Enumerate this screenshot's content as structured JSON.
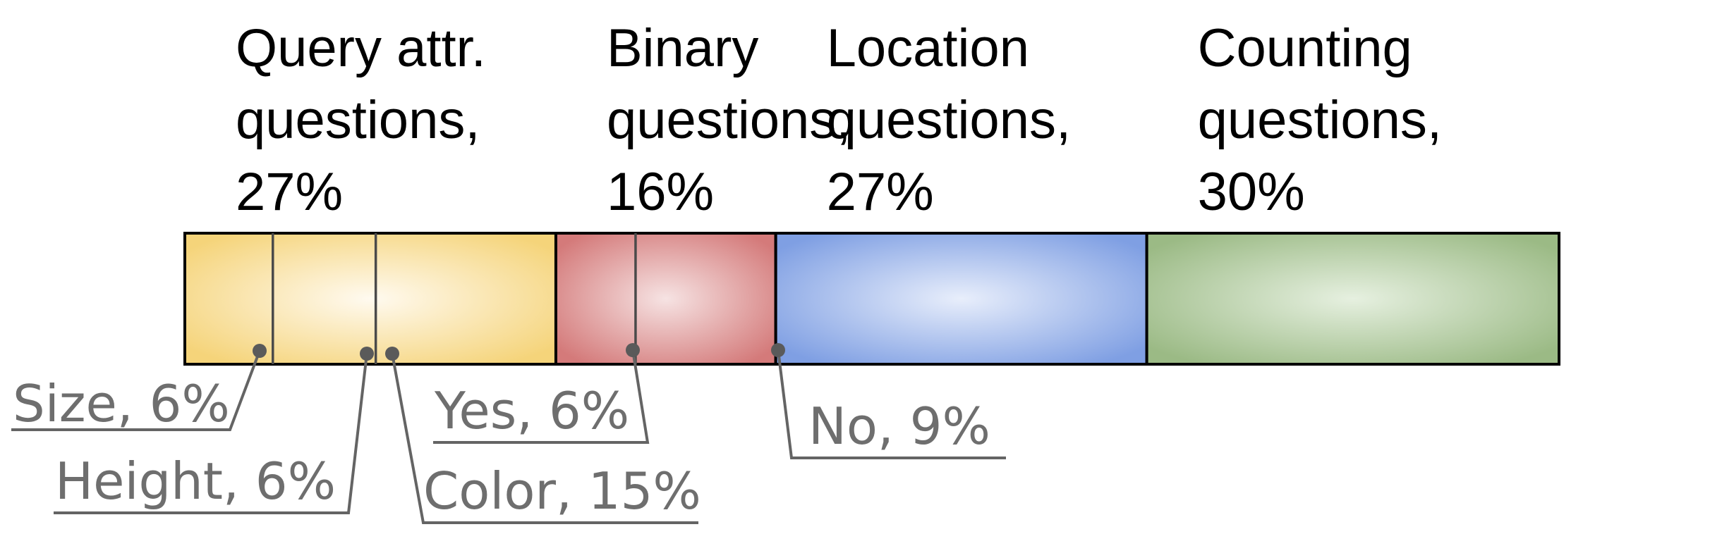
{
  "chart_data": {
    "type": "bar",
    "orientation": "horizontal-stacked-100",
    "categories": [
      {
        "name": "Query attr.",
        "label_lines": [
          "Query attr.",
          "questions,",
          "27%"
        ],
        "value": 27,
        "color": "#f5d47a",
        "center_color": "#fffaf0"
      },
      {
        "name": "Binary",
        "label_lines": [
          "Binary",
          "questions,",
          "16%"
        ],
        "value": 16,
        "color": "#d47a7a",
        "center_color": "#f6e3e3"
      },
      {
        "name": "Location",
        "label_lines": [
          "Location",
          "questions,",
          "27%"
        ],
        "value": 27,
        "color": "#7f9fe3",
        "center_color": "#e8eefb"
      },
      {
        "name": "Counting",
        "label_lines": [
          "Counting",
          "questions,",
          "30%"
        ],
        "value": 30,
        "color": "#9bba85",
        "center_color": "#e6f0e0"
      }
    ],
    "subcategories": [
      {
        "parent": "Query attr.",
        "label": "Size, 6%",
        "value": 6
      },
      {
        "parent": "Query attr.",
        "label": "Height, 6%",
        "value": 6
      },
      {
        "parent": "Query attr.",
        "label": "Color, 15%",
        "value": 15
      },
      {
        "parent": "Binary",
        "label": "Yes, 6%",
        "value": 6
      },
      {
        "parent": "Binary",
        "label": "No, 9%",
        "value": 9
      }
    ]
  }
}
